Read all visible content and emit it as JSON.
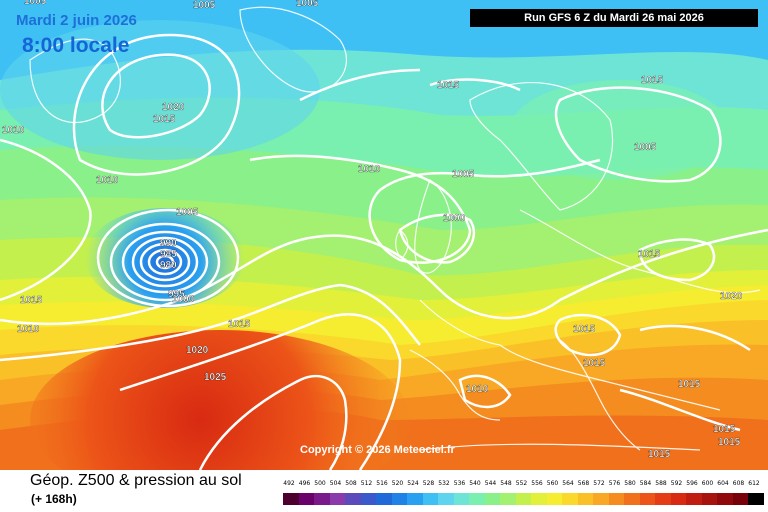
{
  "header": {
    "date": "Mardi 2 juin 2026",
    "time": "8:00 locale",
    "run": "Run GFS 6 Z du Mardi 26 mai 2026"
  },
  "copyright": "Copyright © 2026 Meteociel.fr",
  "footer": {
    "title": "Géop. Z500 & pression au sol",
    "subtitle": "(+ 168h)"
  },
  "pressure_labels": [
    "1005",
    "1005",
    "1005",
    "1020",
    "1015",
    "1010",
    "1010",
    "1005",
    "990",
    "985",
    "980",
    "995",
    "1000",
    "1015",
    "1010",
    "1015",
    "1020",
    "1025",
    "1010",
    "1005",
    "1000",
    "1015",
    "1005",
    "1015",
    "1015",
    "1020",
    "1010",
    "1015",
    "1015",
    "1015",
    "1015",
    "1015",
    "1015"
  ],
  "scale_values": [
    "492",
    "496",
    "500",
    "504",
    "508",
    "512",
    "516",
    "520",
    "524",
    "528",
    "532",
    "536",
    "540",
    "544",
    "548",
    "552",
    "556",
    "560",
    "564",
    "568",
    "572",
    "576",
    "580",
    "584",
    "588",
    "592",
    "596",
    "600",
    "604",
    "608",
    "612"
  ],
  "scale_colors": [
    "#4d0030",
    "#6a006a",
    "#7a1a8a",
    "#8a3aaa",
    "#5a4aba",
    "#3a5acc",
    "#1f6ad8",
    "#1e82e6",
    "#2aa0f0",
    "#3ec0f4",
    "#5ed4ee",
    "#6ee4d6",
    "#7af0b0",
    "#8af08a",
    "#a4f070",
    "#c4f04e",
    "#e2f03a",
    "#f6ec30",
    "#fad82c",
    "#fac028",
    "#f8a824",
    "#f48c20",
    "#f0701c",
    "#ec5418",
    "#e43c14",
    "#d82a12",
    "#c01c10",
    "#a8120e",
    "#90080c",
    "#780008",
    "#000000"
  ]
}
